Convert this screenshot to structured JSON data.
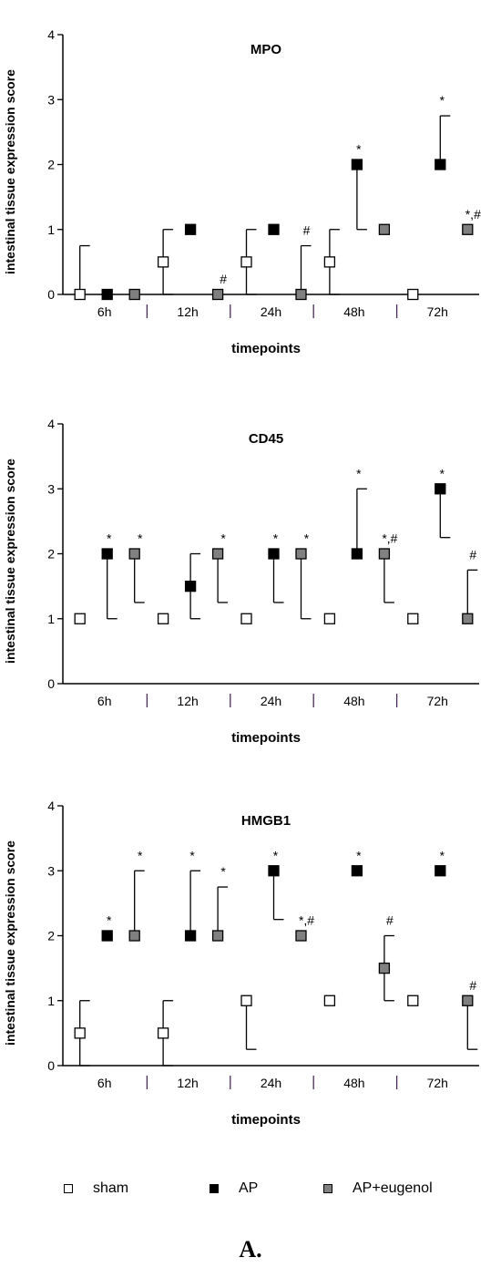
{
  "colors": {
    "sham": "#ffffff",
    "AP": "#000000",
    "AP+eugenol": "#808080"
  },
  "legend": {
    "items": [
      {
        "label": "sham",
        "color": "#ffffff"
      },
      {
        "label": "AP",
        "color": "#000000"
      },
      {
        "label": "AP+eugenol",
        "color": "#808080"
      }
    ]
  },
  "panel_label": "A.",
  "chart_data": [
    {
      "type": "scatter",
      "title": "MPO",
      "ylabel": "intestinal tissue expression score",
      "xlabel": "timepoints",
      "ylim": [
        0,
        4
      ],
      "yticks": [
        "0",
        "1",
        "2",
        "3",
        "4"
      ],
      "categories": [
        "6h",
        "12h",
        "24h",
        "48h",
        "72h"
      ],
      "series": [
        {
          "name": "sham",
          "values": [
            0,
            0.5,
            0.5,
            0.5,
            0
          ],
          "error_low": [
            0,
            0,
            0,
            0,
            0
          ],
          "error_high": [
            0.75,
            1,
            1,
            1,
            0
          ],
          "annotations": [
            "",
            "",
            "",
            "",
            ""
          ]
        },
        {
          "name": "AP",
          "values": [
            0,
            1,
            1,
            2,
            2
          ],
          "error_low": [
            0,
            1,
            1,
            1,
            2
          ],
          "error_high": [
            0,
            1,
            1,
            2,
            2.75
          ],
          "annotations": [
            "",
            "",
            "",
            "*",
            "*"
          ]
        },
        {
          "name": "AP+eugenol",
          "values": [
            0,
            0,
            0,
            1,
            1
          ],
          "error_low": [
            0,
            0,
            0,
            1,
            1
          ],
          "error_high": [
            0,
            0,
            0.75,
            1,
            1
          ],
          "annotations": [
            "",
            "#",
            "#",
            "",
            "*,#"
          ]
        }
      ]
    },
    {
      "type": "scatter",
      "title": "CD45",
      "ylabel": "intestinal tissue expression score",
      "xlabel": "timepoints",
      "ylim": [
        0,
        4
      ],
      "yticks": [
        "0",
        "1",
        "2",
        "3",
        "4"
      ],
      "categories": [
        "6h",
        "12h",
        "24h",
        "48h",
        "72h"
      ],
      "series": [
        {
          "name": "sham",
          "values": [
            1,
            1,
            1,
            1,
            1
          ],
          "error_low": [
            1,
            1,
            1,
            1,
            1
          ],
          "error_high": [
            1,
            1,
            1,
            1,
            1
          ],
          "annotations": [
            "",
            "",
            "",
            "",
            ""
          ]
        },
        {
          "name": "AP",
          "values": [
            2,
            1.5,
            2,
            2,
            3
          ],
          "error_low": [
            1,
            1,
            1.25,
            2,
            2.25
          ],
          "error_high": [
            2,
            2,
            2,
            3,
            3
          ],
          "annotations": [
            "*",
            "",
            "*",
            "*",
            "*"
          ]
        },
        {
          "name": "AP+eugenol",
          "values": [
            2,
            2,
            2,
            2,
            1
          ],
          "error_low": [
            1.25,
            1.25,
            1,
            1.25,
            1
          ],
          "error_high": [
            2,
            2,
            2,
            2,
            1.75
          ],
          "annotations": [
            "*",
            "*",
            "*",
            "*,#",
            "#"
          ]
        }
      ]
    },
    {
      "type": "scatter",
      "title": "HMGB1",
      "ylabel": "intestinal tissue expression score",
      "xlabel": "timepoints",
      "ylim": [
        0,
        4
      ],
      "yticks": [
        "0",
        "1",
        "2",
        "3",
        "4"
      ],
      "categories": [
        "6h",
        "12h",
        "24h",
        "48h",
        "72h"
      ],
      "series": [
        {
          "name": "sham",
          "values": [
            0.5,
            0.5,
            1,
            1,
            1
          ],
          "error_low": [
            0,
            0,
            0.25,
            1,
            1
          ],
          "error_high": [
            1,
            1,
            1,
            1,
            1
          ],
          "annotations": [
            "",
            "",
            "",
            "",
            ""
          ]
        },
        {
          "name": "AP",
          "values": [
            2,
            2,
            3,
            3,
            3
          ],
          "error_low": [
            2,
            2,
            2.25,
            3,
            3
          ],
          "error_high": [
            2,
            3,
            3,
            3,
            3
          ],
          "annotations": [
            "*",
            "*",
            "*",
            "*",
            "*"
          ]
        },
        {
          "name": "AP+eugenol",
          "values": [
            2,
            2,
            2,
            1.5,
            1
          ],
          "error_low": [
            2,
            2,
            2,
            1,
            0.25
          ],
          "error_high": [
            3,
            2.75,
            2,
            2,
            1
          ],
          "annotations": [
            "*",
            "*",
            "*,#",
            "#",
            "#"
          ]
        }
      ]
    }
  ]
}
